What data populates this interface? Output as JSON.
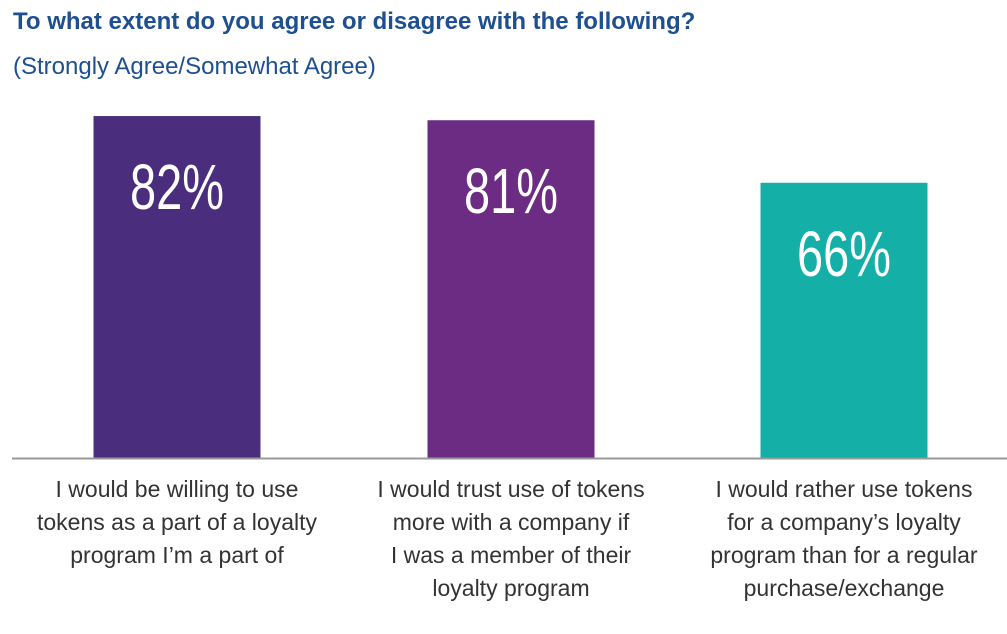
{
  "chart_data": {
    "type": "bar",
    "title": "To what extent do you agree or disagree with the following?",
    "subtitle": "(Strongly Agree/Somewhat Agree)",
    "categories": [
      [
        "I would be willing to use",
        "tokens as a part of a loyalty",
        "program I’m a part of"
      ],
      [
        "I would trust use of tokens",
        "more with a company if",
        "I was a member of their",
        "loyalty program"
      ],
      [
        "I would rather use tokens",
        "for a company’s loyalty",
        "program than for a regular",
        "purchase/exchange"
      ]
    ],
    "values": [
      82,
      81,
      66
    ],
    "value_labels": [
      "82%",
      "81%",
      "66%"
    ],
    "colors": [
      "#4a2d7c",
      "#6d2c83",
      "#14b0a8"
    ],
    "ylim": [
      0,
      100
    ],
    "grid": false,
    "legend": "none"
  }
}
